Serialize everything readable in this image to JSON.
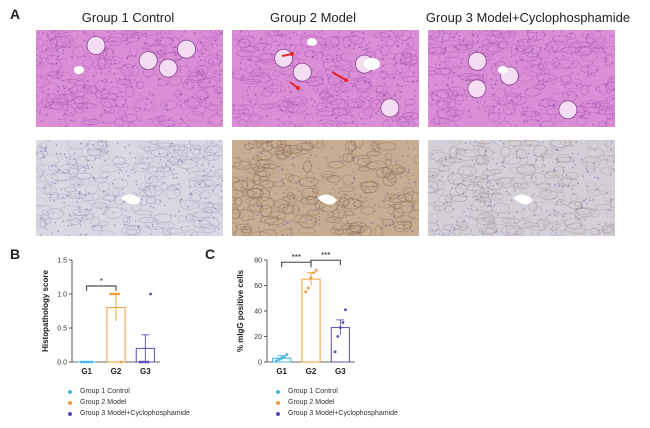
{
  "panel_a": {
    "letter": "A",
    "groups": [
      "Group 1 Control",
      "Group 2 Model",
      "Group 3 Model+Cyclophosphamide"
    ]
  },
  "colors": {
    "he_bg": "#d98ed6",
    "he_dark": "#b45fb6",
    "ihc_light": "#d9d7e2",
    "ihc_brown": "#b89c80",
    "g1": "#41b6e6",
    "g2": "#f29a32",
    "g3": "#5c4bb0"
  },
  "panel_b": {
    "letter": "B"
  },
  "panel_c": {
    "letter": "C"
  },
  "chart_data": [
    {
      "type": "bar",
      "ylabel": "Histopathology score",
      "categories": [
        "G1",
        "G2",
        "G3"
      ],
      "ylim": [
        0,
        1.5
      ],
      "yticks": [
        "0.0",
        "0.5",
        "1.0",
        "1.5"
      ],
      "means": [
        0.0,
        0.8,
        0.2
      ],
      "errors": [
        0.0,
        0.2,
        0.2
      ],
      "points": [
        [
          0,
          0,
          0,
          0,
          0
        ],
        [
          1,
          1,
          1,
          1,
          0
        ],
        [
          0,
          0,
          0,
          0,
          1
        ]
      ],
      "significance": [
        {
          "from": "G1",
          "to": "G2",
          "label": "*"
        }
      ],
      "legend": [
        "Group 1 Control",
        "Group 2 Model",
        "Group 3 Model+Cyclophosphamide"
      ]
    },
    {
      "type": "bar",
      "ylabel": "% mIgG positive cells",
      "categories": [
        "G1",
        "G2",
        "G3"
      ],
      "ylim": [
        0,
        80
      ],
      "yticks": [
        "0",
        "20",
        "40",
        "60",
        "80"
      ],
      "means": [
        3,
        65,
        27
      ],
      "errors": [
        2,
        5,
        6
      ],
      "points": [
        [
          1,
          2,
          3,
          4,
          6
        ],
        [
          55,
          58,
          66,
          70,
          72
        ],
        [
          8,
          20,
          27,
          31,
          41
        ]
      ],
      "significance": [
        {
          "from": "G1",
          "to": "G2",
          "label": "***"
        },
        {
          "from": "G2",
          "to": "G3",
          "label": "***"
        }
      ],
      "legend": [
        "Group 1 Control",
        "Group 2 Model",
        "Group 3 Model+Cyclophosphamide"
      ]
    }
  ]
}
